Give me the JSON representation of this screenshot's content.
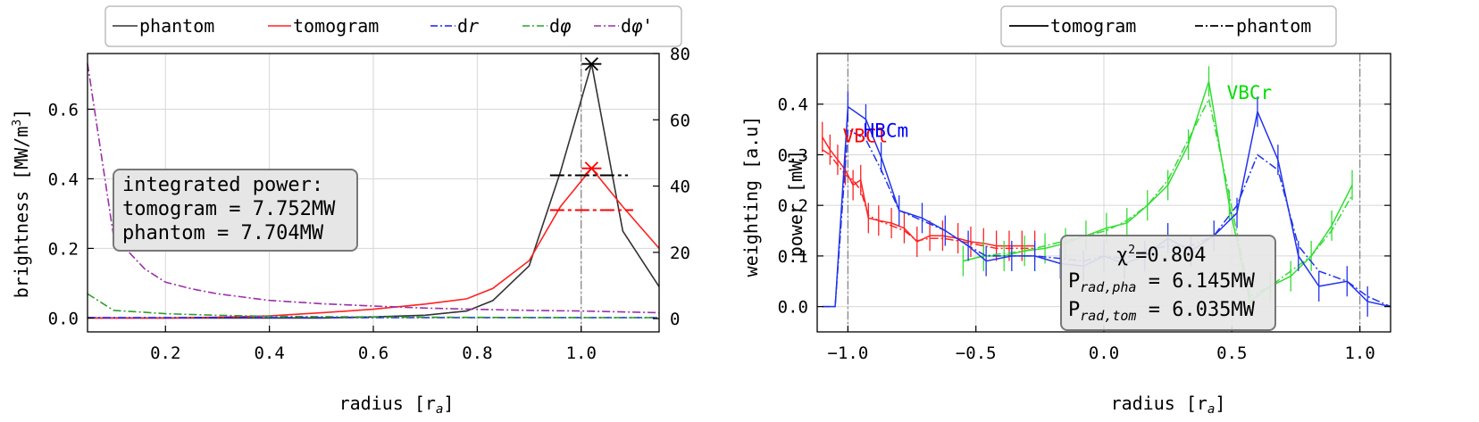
{
  "chart_data": [
    {
      "type": "line",
      "xlabel": "radius [r",
      "xlabel_sub": "a",
      "xlabel_end": "]",
      "ylabel": "brightness [MW/m",
      "ylabel_sup": "3",
      "ylabel_end": "]",
      "ylabel_right": "weighting [a.u]",
      "xlim": [
        0.05,
        1.15
      ],
      "ylim": [
        -0.04,
        0.76
      ],
      "ylim_right": [
        -4,
        80
      ],
      "xticks": [
        "0.2",
        "0.4",
        "0.6",
        "0.8",
        "1.0"
      ],
      "yticks": [
        "0.0",
        "0.2",
        "0.4",
        "0.6"
      ],
      "yticks_right": [
        "0",
        "20",
        "40",
        "60",
        "80"
      ],
      "grid": true,
      "legend_position": "top (above plot)",
      "legend": [
        {
          "label": "phantom",
          "color": "#333333",
          "style": "solid"
        },
        {
          "label": "tomogram",
          "color": "#ff2222",
          "style": "solid"
        },
        {
          "label": "dr",
          "color": "#1a1aff",
          "style": "dashdot"
        },
        {
          "label": "dφ",
          "color": "#2ca02c",
          "style": "dashdot"
        },
        {
          "label": "dφ'",
          "color": "#9b30a8",
          "style": "dashdot"
        }
      ],
      "series": [
        {
          "name": "phantom",
          "axis": "left",
          "x": [
            0.05,
            0.1,
            0.2,
            0.3,
            0.4,
            0.5,
            0.6,
            0.7,
            0.78,
            0.83,
            0.9,
            0.96,
            1.02,
            1.08,
            1.15
          ],
          "y": [
            0,
            0,
            0,
            0,
            0,
            0,
            0.003,
            0.008,
            0.02,
            0.05,
            0.15,
            0.42,
            0.73,
            0.25,
            0.09
          ]
        },
        {
          "name": "tomogram",
          "axis": "left",
          "x": [
            0.05,
            0.1,
            0.2,
            0.3,
            0.4,
            0.5,
            0.6,
            0.7,
            0.78,
            0.83,
            0.9,
            0.96,
            1.02,
            1.08,
            1.15
          ],
          "y": [
            0,
            0,
            0,
            0.002,
            0.006,
            0.015,
            0.025,
            0.04,
            0.055,
            0.085,
            0.165,
            0.32,
            0.43,
            0.32,
            0.2
          ]
        },
        {
          "name": "dr",
          "axis": "right",
          "x": [
            0.05,
            0.3,
            0.6,
            0.9,
            1.15
          ],
          "y": [
            0.3,
            0.3,
            0.3,
            0.3,
            0.3
          ]
        },
        {
          "name": "dφ",
          "axis": "right",
          "x": [
            0.05,
            0.08,
            0.1,
            0.15,
            0.2,
            0.3,
            0.4,
            0.6,
            0.8,
            1.0,
            1.15
          ],
          "y": [
            7.5,
            4.5,
            2.5,
            2,
            1.5,
            1,
            0.7,
            0.5,
            0.4,
            0.3,
            0.3
          ]
        },
        {
          "name": "dφ'",
          "axis": "right",
          "x": [
            0.05,
            0.1,
            0.16,
            0.2,
            0.25,
            0.3,
            0.35,
            0.4,
            0.5,
            0.6,
            0.7,
            0.8,
            0.9,
            1.0,
            1.15
          ],
          "y": [
            77,
            25,
            15,
            11,
            9,
            7.5,
            6.5,
            5.5,
            4.5,
            3.8,
            3.2,
            2.8,
            2.5,
            2.3,
            1.8
          ]
        }
      ],
      "vline_x": 1.0,
      "markers": [
        {
          "x": 1.02,
          "y": 0.73,
          "color": "#000000",
          "shape": "star"
        },
        {
          "x": 1.02,
          "y": 0.43,
          "color": "#ff0000",
          "shape": "x"
        }
      ],
      "error_bars_horizontal": [
        {
          "x1": 0.94,
          "x2": 1.09,
          "y": 0.41,
          "color": "#000000",
          "style": "dashdot"
        },
        {
          "x1": 0.94,
          "x2": 1.1,
          "y": 0.31,
          "color": "#ff0000",
          "style": "dashdot"
        }
      ],
      "annotation": {
        "lines": [
          "integrated power:",
          "tomogram = 7.752MW",
          "phantom = 7.704MW"
        ]
      }
    },
    {
      "type": "line",
      "xlabel": "radius [r",
      "xlabel_sub": "a",
      "xlabel_end": "]",
      "ylabel": "power [mW]",
      "xlim": [
        -1.12,
        1.12
      ],
      "ylim": [
        -0.05,
        0.5
      ],
      "xticks": [
        "−1.0",
        "−0.5",
        "0.0",
        "0.5",
        "1.0"
      ],
      "yticks": [
        "0.0",
        "0.1",
        "0.2",
        "0.3",
        "0.4"
      ],
      "grid": true,
      "legend_position": "top (above plot)",
      "legend": [
        {
          "label": "tomogram",
          "color": "#000000",
          "style": "solid"
        },
        {
          "label": "phantom",
          "color": "#000000",
          "style": "dashdot"
        }
      ],
      "vlines_x": [
        -1.0,
        1.0
      ],
      "camera_labels": [
        {
          "text": "VBCl",
          "color": "#ff0000",
          "x": -1.02,
          "y": 0.325
        },
        {
          "text": "HBCm",
          "color": "#0000ff",
          "x": -0.94,
          "y": 0.335
        },
        {
          "text": "VBCr",
          "color": "#00dd00",
          "x": 0.48,
          "y": 0.41
        }
      ],
      "series": [
        {
          "name": "VBCl tomogram",
          "color": "#ff2222",
          "x": [
            -1.1,
            -1.07,
            -1.04,
            -1.01,
            -0.98,
            -0.95,
            -0.92,
            -0.88,
            -0.83,
            -0.78,
            -0.73,
            -0.68,
            -0.63,
            -0.57,
            -0.52,
            -0.47,
            -0.42,
            -0.37,
            -0.32,
            -0.27
          ],
          "y": [
            0.335,
            0.31,
            0.29,
            0.27,
            0.24,
            0.25,
            0.175,
            0.17,
            0.165,
            0.155,
            0.128,
            0.14,
            0.14,
            0.135,
            0.128,
            0.125,
            0.12,
            0.12,
            0.12,
            0.12
          ]
        },
        {
          "name": "VBCl phantom",
          "color": "#ff2222",
          "x": [
            -1.1,
            -1.07,
            -1.04,
            -1.01,
            -0.98,
            -0.95,
            -0.92,
            -0.88,
            -0.83,
            -0.78,
            -0.73,
            -0.68,
            -0.63,
            -0.57,
            -0.52,
            -0.47,
            -0.42,
            -0.37,
            -0.32,
            -0.27
          ],
          "y": [
            0.31,
            0.3,
            0.28,
            0.26,
            0.25,
            0.23,
            0.18,
            0.17,
            0.16,
            0.15,
            0.13,
            0.135,
            0.135,
            0.13,
            0.125,
            0.12,
            0.115,
            0.115,
            0.115,
            0.115
          ]
        },
        {
          "name": "VBCr tomogram",
          "color": "#33dd33",
          "x": [
            -0.55,
            -0.47,
            -0.39,
            -0.31,
            -0.23,
            -0.15,
            -0.07,
            0.01,
            0.09,
            0.17,
            0.25,
            0.33,
            0.41,
            0.49,
            0.57,
            0.65,
            0.73,
            0.81,
            0.89,
            0.97
          ],
          "y": [
            0.09,
            0.1,
            0.1,
            0.11,
            0.115,
            0.125,
            0.14,
            0.155,
            0.165,
            0.2,
            0.24,
            0.32,
            0.445,
            0.2,
            0.01,
            0.04,
            0.06,
            0.1,
            0.16,
            0.24
          ]
        },
        {
          "name": "VBCr phantom",
          "color": "#33dd33",
          "x": [
            -0.55,
            -0.47,
            -0.39,
            -0.31,
            -0.23,
            -0.15,
            -0.07,
            0.01,
            0.09,
            0.17,
            0.25,
            0.33,
            0.41,
            0.49,
            0.57,
            0.65,
            0.73,
            0.81,
            0.89,
            0.97
          ],
          "y": [
            0.09,
            0.1,
            0.105,
            0.11,
            0.12,
            0.13,
            0.14,
            0.15,
            0.17,
            0.2,
            0.25,
            0.33,
            0.41,
            0.22,
            0.02,
            0.04,
            0.07,
            0.1,
            0.15,
            0.22
          ]
        },
        {
          "name": "HBCm tomogram",
          "color": "#2233ee",
          "x": [
            -1.1,
            -1.05,
            -1.0,
            -0.93,
            -0.87,
            -0.8,
            -0.71,
            -0.62,
            -0.53,
            -0.46,
            -0.36,
            -0.27,
            -0.17,
            -0.08,
            0.0,
            0.08,
            0.16,
            0.25,
            0.34,
            0.43,
            0.52,
            0.6,
            0.68,
            0.76,
            0.84,
            0.95,
            1.03,
            1.12
          ],
          "y": [
            0.0,
            0.0,
            0.395,
            0.37,
            0.295,
            0.19,
            0.175,
            0.15,
            0.12,
            0.09,
            0.1,
            0.1,
            0.085,
            0.08,
            0.1,
            0.085,
            0.1,
            0.135,
            0.11,
            0.14,
            0.185,
            0.385,
            0.29,
            0.1,
            0.04,
            0.05,
            0.01,
            0.0
          ]
        },
        {
          "name": "HBCm phantom",
          "color": "#2233ee",
          "x": [
            -1.1,
            -1.05,
            -1.0,
            -0.93,
            -0.87,
            -0.8,
            -0.71,
            -0.62,
            -0.53,
            -0.46,
            -0.36,
            -0.27,
            -0.17,
            -0.08,
            0.0,
            0.08,
            0.16,
            0.25,
            0.34,
            0.43,
            0.52,
            0.6,
            0.68,
            0.76,
            0.84,
            0.95,
            1.03,
            1.12
          ],
          "y": [
            0.0,
            0.0,
            0.35,
            0.33,
            0.27,
            0.19,
            0.17,
            0.15,
            0.12,
            0.1,
            0.1,
            0.1,
            0.095,
            0.09,
            0.1,
            0.095,
            0.11,
            0.12,
            0.12,
            0.14,
            0.2,
            0.3,
            0.27,
            0.12,
            0.07,
            0.05,
            0.02,
            0.0
          ]
        }
      ],
      "annotation": {
        "lines": [
          {
            "main": "χ",
            "sup": "2",
            "rest": "=0.804"
          },
          {
            "main": "P",
            "sub": "rad,pha",
            "rest": " = 6.145MW"
          },
          {
            "main": "P",
            "sub": "rad,tom",
            "rest": " = 6.035MW"
          }
        ]
      }
    }
  ]
}
